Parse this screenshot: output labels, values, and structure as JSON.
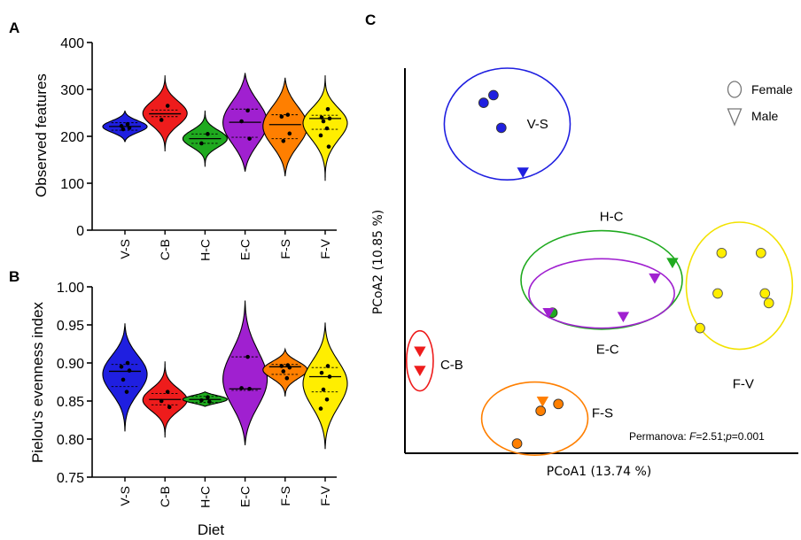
{
  "panels": {
    "a": "A",
    "b": "B",
    "c": "C"
  },
  "x_title": "Diet",
  "chart_data": [
    {
      "type": "violin",
      "panel": "A",
      "title": "",
      "xlabel": "",
      "ylabel": "Observed features",
      "ylim": [
        0,
        400
      ],
      "yticks": [
        0,
        100,
        200,
        300,
        400
      ],
      "categories": [
        "V-S",
        "C-B",
        "H-C",
        "E-C",
        "F-S",
        "F-V"
      ],
      "series": [
        {
          "category": "V-S",
          "color": "#1f1fe0",
          "min": 188,
          "max": 255,
          "median": 221,
          "q1": 213,
          "q3": 229,
          "points": [
            226,
            222,
            218,
            215
          ]
        },
        {
          "category": "C-B",
          "color": "#ee1c1c",
          "min": 168,
          "max": 330,
          "median": 248,
          "q1": 242,
          "q3": 256,
          "points": [
            265,
            235
          ]
        },
        {
          "category": "H-C",
          "color": "#1faa1f",
          "min": 135,
          "max": 255,
          "median": 195,
          "q1": 185,
          "q3": 205,
          "points": [
            205,
            185
          ]
        },
        {
          "category": "E-C",
          "color": "#a020d0",
          "min": 125,
          "max": 335,
          "median": 230,
          "q1": 198,
          "q3": 258,
          "points": [
            255,
            232,
            195
          ]
        },
        {
          "category": "F-S",
          "color": "#ff7f00",
          "min": 115,
          "max": 325,
          "median": 225,
          "q1": 195,
          "q3": 246,
          "points": [
            246,
            242,
            206,
            190
          ]
        },
        {
          "category": "F-V",
          "color": "#ffee00",
          "min": 105,
          "max": 330,
          "median": 238,
          "q1": 215,
          "q3": 245,
          "points": [
            258,
            240,
            238,
            232,
            217,
            202,
            178
          ]
        }
      ]
    },
    {
      "type": "violin",
      "panel": "B",
      "title": "",
      "xlabel": "Diet",
      "ylabel": "Pielou's evenness index",
      "ylim": [
        0.75,
        1.0
      ],
      "yticks": [
        "0.75",
        "0.80",
        "0.85",
        "0.90",
        "0.95",
        "1.00"
      ],
      "categories": [
        "V-S",
        "C-B",
        "H-C",
        "E-C",
        "F-S",
        "F-V"
      ],
      "series": [
        {
          "category": "V-S",
          "color": "#1f1fe0",
          "min": 0.81,
          "max": 0.952,
          "median": 0.889,
          "q1": 0.869,
          "q3": 0.898,
          "points": [
            0.9,
            0.895,
            0.89,
            0.878,
            0.862
          ]
        },
        {
          "category": "C-B",
          "color": "#ee1c1c",
          "min": 0.802,
          "max": 0.902,
          "median": 0.852,
          "q1": 0.845,
          "q3": 0.86,
          "points": [
            0.862,
            0.85,
            0.842
          ]
        },
        {
          "category": "H-C",
          "color": "#1faa1f",
          "min": 0.843,
          "max": 0.862,
          "median": 0.852,
          "q1": 0.848,
          "q3": 0.856,
          "points": [
            0.855,
            0.851,
            0.849
          ]
        },
        {
          "category": "E-C",
          "color": "#a020d0",
          "min": 0.792,
          "max": 0.982,
          "median": 0.866,
          "q1": 0.864,
          "q3": 0.908,
          "points": [
            0.908,
            0.867,
            0.866
          ]
        },
        {
          "category": "F-S",
          "color": "#ff7f00",
          "min": 0.856,
          "max": 0.918,
          "median": 0.895,
          "q1": 0.885,
          "q3": 0.898,
          "points": [
            0.897,
            0.896,
            0.894,
            0.889,
            0.88
          ]
        },
        {
          "category": "F-V",
          "color": "#ffee00",
          "min": 0.787,
          "max": 0.953,
          "median": 0.882,
          "q1": 0.862,
          "q3": 0.894,
          "points": [
            0.896,
            0.887,
            0.882,
            0.865,
            0.852,
            0.84
          ]
        }
      ]
    },
    {
      "type": "scatter",
      "panel": "C",
      "title": "",
      "xlabel": "PCoA1 (13.74 %)",
      "ylabel": "PCoA2 (10.85 %)",
      "xlim": [
        0,
        100
      ],
      "ylim": [
        0,
        100
      ],
      "legend": {
        "placement": "top-right",
        "entries": [
          {
            "shape": "circle",
            "label": "Female"
          },
          {
            "shape": "triangle",
            "label": "Male"
          }
        ]
      },
      "annotation": {
        "prefix": "Permanova: ",
        "f_label": "F",
        "f_value": "=2.51;",
        "p_label": "p",
        "p_value": "=0.001"
      },
      "groups": [
        {
          "name": "V-S",
          "color": "#1f1fe0",
          "ellipse": {
            "cx": 26,
            "cy": 85.5,
            "rx": 16,
            "ry": 14.5
          },
          "points": [
            {
              "x": 20,
              "y": 91,
              "sex": "female"
            },
            {
              "x": 22.5,
              "y": 93,
              "sex": "female"
            },
            {
              "x": 24.5,
              "y": 84.5,
              "sex": "female"
            },
            {
              "x": 30,
              "y": 73,
              "sex": "male"
            }
          ]
        },
        {
          "name": "C-B",
          "color": "#ee1c1c",
          "ellipse": {
            "cx": 3.8,
            "cy": 24,
            "rx": 3.4,
            "ry": 7.8
          },
          "points": [
            {
              "x": 3.8,
              "y": 26.5,
              "sex": "male"
            },
            {
              "x": 3.8,
              "y": 21.5,
              "sex": "male"
            }
          ]
        },
        {
          "name": "H-C",
          "color": "#1faa1f",
          "ellipse": {
            "cx": 50,
            "cy": 45,
            "rx": 20.5,
            "ry": 12.8
          },
          "points": [
            {
              "x": 37.5,
              "y": 36.5,
              "sex": "female"
            },
            {
              "x": 68,
              "y": 49.5,
              "sex": "male"
            }
          ]
        },
        {
          "name": "E-C",
          "color": "#a020d0",
          "ellipse": {
            "cx": 50,
            "cy": 41.5,
            "rx": 18.5,
            "ry": 9
          },
          "points": [
            {
              "x": 36.5,
              "y": 36.5,
              "sex": "male"
            },
            {
              "x": 55.5,
              "y": 35.5,
              "sex": "male"
            },
            {
              "x": 63.5,
              "y": 45.5,
              "sex": "male"
            }
          ]
        },
        {
          "name": "F-V",
          "color": "#ffee00",
          "ellipse": {
            "cx": 85,
            "cy": 43.5,
            "rx": 13.5,
            "ry": 16.5
          },
          "points": [
            {
              "x": 80.5,
              "y": 52,
              "sex": "female"
            },
            {
              "x": 90.5,
              "y": 52,
              "sex": "female"
            },
            {
              "x": 79.5,
              "y": 41.5,
              "sex": "female"
            },
            {
              "x": 91.5,
              "y": 41.5,
              "sex": "female"
            },
            {
              "x": 92.5,
              "y": 39,
              "sex": "female"
            },
            {
              "x": 75,
              "y": 32.5,
              "sex": "female"
            }
          ]
        },
        {
          "name": "F-S",
          "color": "#ff7f00",
          "ellipse": {
            "cx": 33,
            "cy": 9,
            "rx": 13.5,
            "ry": 9.5
          },
          "points": [
            {
              "x": 35,
              "y": 13.5,
              "sex": "male"
            },
            {
              "x": 39,
              "y": 12.8,
              "sex": "female"
            },
            {
              "x": 34.5,
              "y": 11,
              "sex": "female"
            },
            {
              "x": 28.5,
              "y": 2.5,
              "sex": "female"
            }
          ]
        }
      ]
    }
  ]
}
